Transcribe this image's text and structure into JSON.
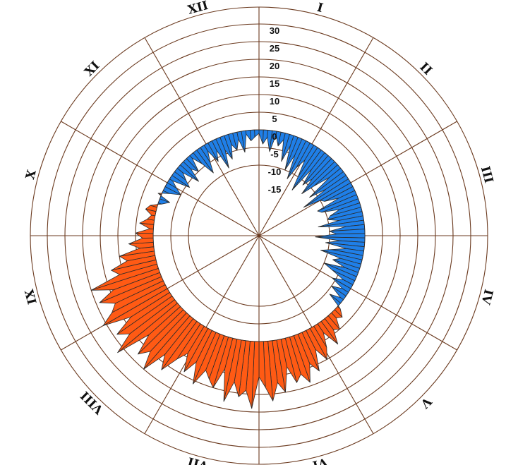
{
  "chart_data": {
    "type": "radial-area",
    "scale_labels": [
      "30",
      "25",
      "20",
      "15",
      "10",
      "5",
      "0",
      "-5",
      "-10",
      "-15"
    ],
    "scale_values": [
      30,
      25,
      20,
      15,
      10,
      5,
      0,
      -5,
      -10,
      -15
    ],
    "rlim": [
      -15,
      30
    ],
    "baseline": 0,
    "months": [
      "I",
      "II",
      "III",
      "IV",
      "V",
      "VI",
      "VII",
      "VIII",
      "IX",
      "X",
      "XI",
      "XII"
    ],
    "colors": {
      "above": "#ff5a14",
      "below": "#1f7fe8",
      "grid": "#6b3a1f"
    },
    "grid": true,
    "series": [
      {
        "values": [
          -1,
          -4,
          -2,
          -6,
          -1,
          -4,
          -2,
          -8,
          -3,
          -10,
          -5,
          -12,
          -8,
          -5,
          -10,
          -14,
          -6,
          -11,
          -8,
          -13,
          -9,
          -4,
          -12,
          -7,
          -15,
          -10,
          -9,
          -5,
          -12,
          -11,
          -6,
          -9,
          -10,
          -7,
          -13,
          -5,
          -10,
          -8,
          -14,
          -7,
          -11,
          -5,
          -9,
          -12,
          -6,
          -8,
          -4,
          -10,
          -7,
          -3,
          -6,
          -2,
          -5,
          -1,
          -4,
          1,
          3,
          2,
          5,
          4,
          8,
          3,
          7,
          10,
          6,
          12,
          9,
          14,
          11,
          13,
          8,
          15,
          12,
          17,
          13,
          10,
          19,
          14,
          16,
          12,
          18,
          9,
          15,
          13,
          11,
          16,
          10,
          14,
          9,
          12,
          17,
          13,
          20,
          15,
          18,
          12,
          22,
          16,
          19,
          13,
          21,
          17,
          15,
          19,
          14,
          20,
          11,
          13,
          8,
          10,
          4,
          7,
          3,
          5,
          1,
          4,
          2,
          1,
          3,
          2,
          -1,
          -3,
          1,
          -2,
          -5,
          -3,
          -1,
          -6,
          -4,
          -2,
          -7,
          -3,
          -5,
          -1,
          -4,
          -8,
          -5,
          -2,
          -6,
          -3,
          -9,
          -4,
          -7,
          -3,
          -5,
          -2,
          -6,
          -1,
          -3,
          -2
        ]
      }
    ]
  }
}
